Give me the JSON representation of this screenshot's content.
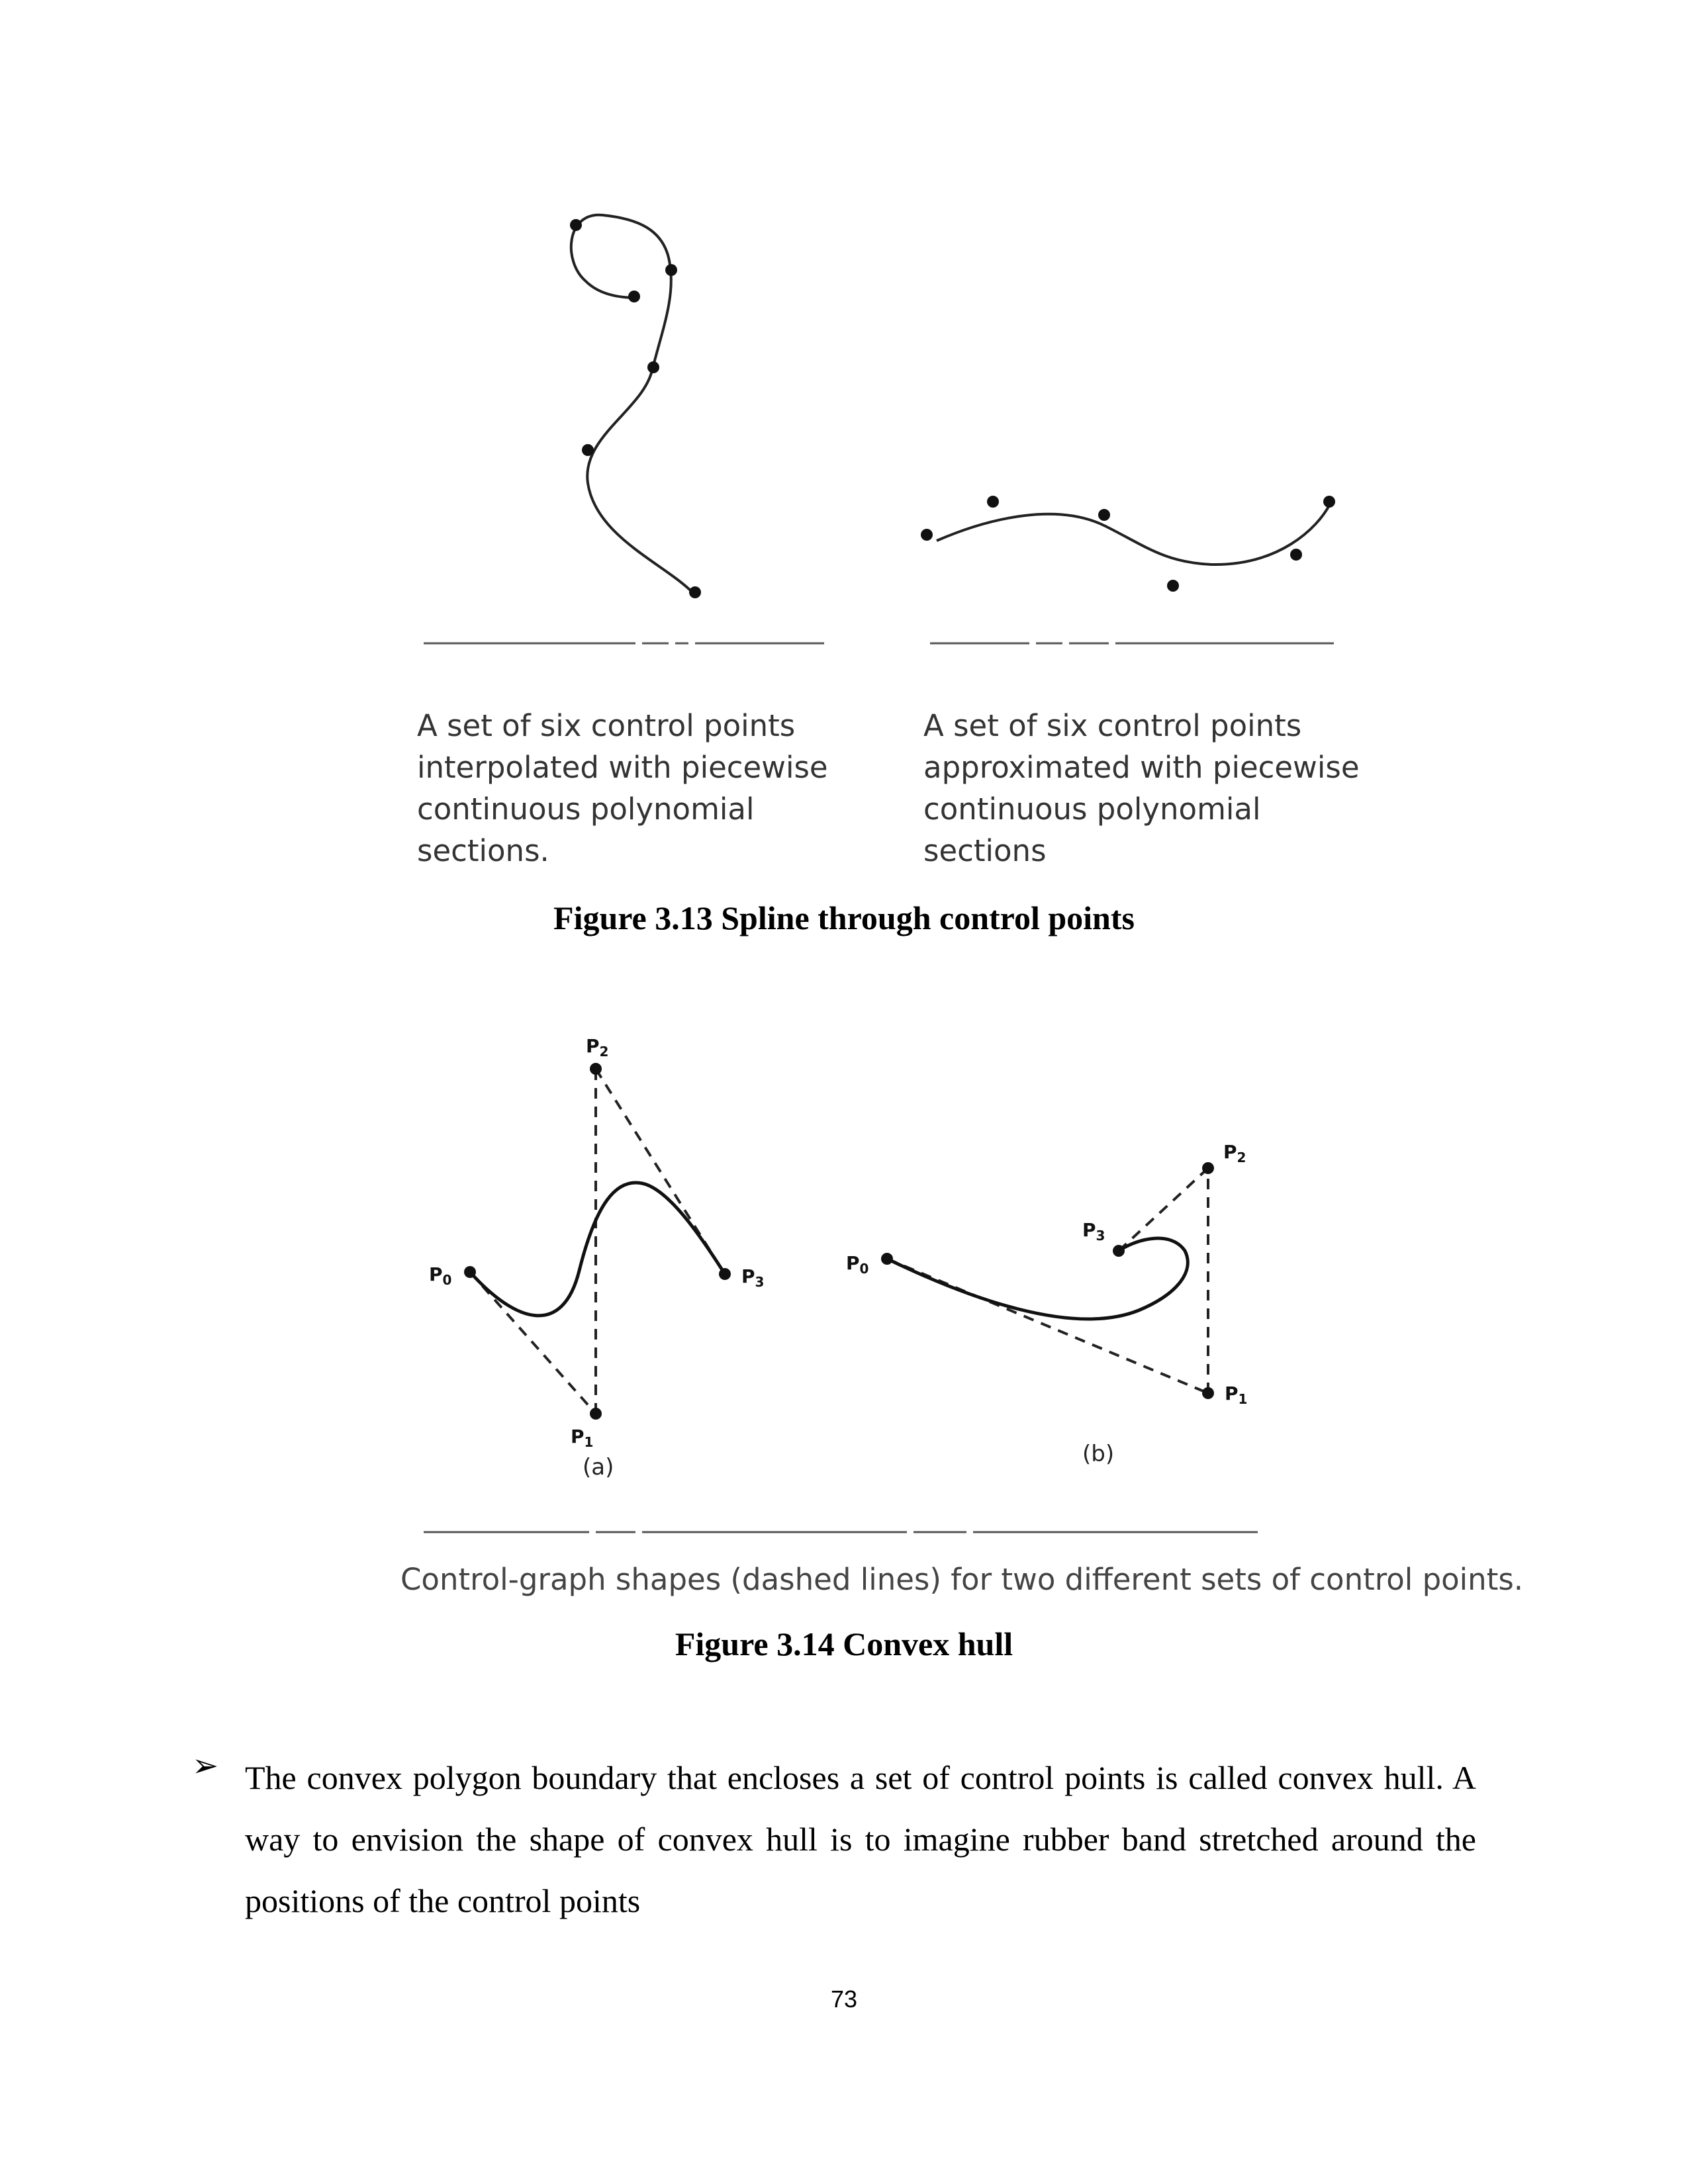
{
  "figure_13": {
    "left_panel": {
      "description_lines": [
        "A set of six control points",
        "interpolated with piecewise",
        "continuous polynomial",
        "sections."
      ]
    },
    "right_panel": {
      "description_lines": [
        "A set of six control points",
        "approximated with piecewise",
        "continuous polynomial",
        "sections"
      ]
    },
    "caption": "Figure 3.13 Spline through control points"
  },
  "figure_14": {
    "panel_a": {
      "label": "(a)",
      "points": [
        {
          "letter": "P",
          "sub": "0"
        },
        {
          "letter": "P",
          "sub": "1"
        },
        {
          "letter": "P",
          "sub": "2"
        },
        {
          "letter": "P",
          "sub": "3"
        }
      ]
    },
    "panel_b": {
      "label": "(b)",
      "points": [
        {
          "letter": "P",
          "sub": "0"
        },
        {
          "letter": "P",
          "sub": "1"
        },
        {
          "letter": "P",
          "sub": "2"
        },
        {
          "letter": "P",
          "sub": "3"
        }
      ]
    },
    "figure_note": "Control-graph shapes (dashed lines) for two different sets of control points.",
    "caption": "Figure 3.14 Convex hull"
  },
  "bullet": {
    "marker": "➢",
    "text": "The convex polygon boundary that encloses a set of control points is called convex hull. A way to envision the shape of convex hull is to imagine rubber band stretched around the positions of the control points"
  },
  "page_number": "73"
}
